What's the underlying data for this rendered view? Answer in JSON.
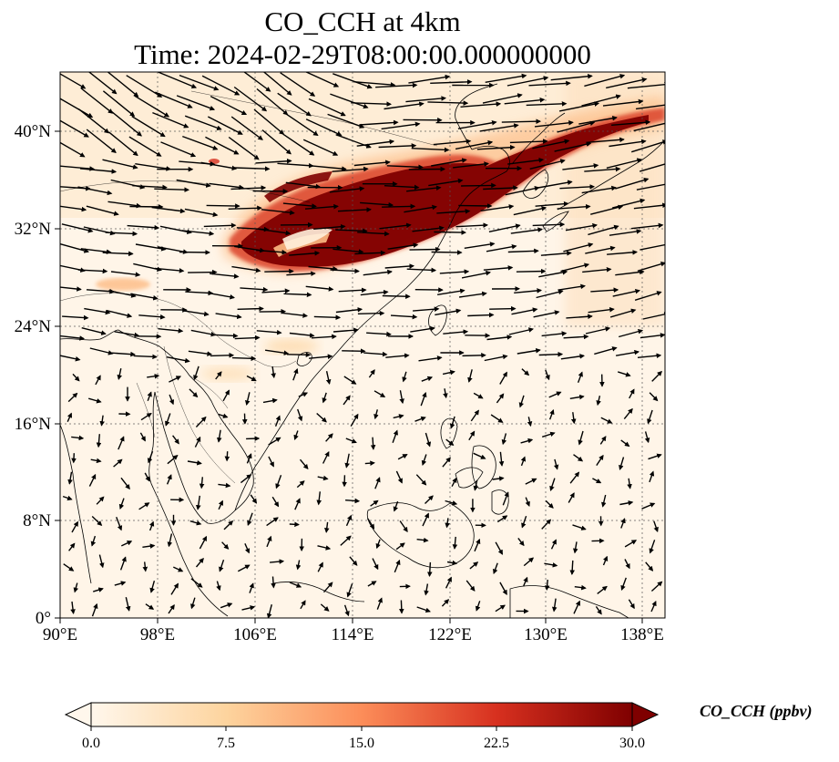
{
  "title": {
    "line1": "CO_CCH at 4km",
    "line2": "Time: 2024-02-29T08:00:00.000000000"
  },
  "map": {
    "lon_range": [
      90,
      139.5
    ],
    "lat_range": [
      0,
      44.8
    ],
    "x_ticks": [
      "90°E",
      "98°E",
      "106°E",
      "114°E",
      "122°E",
      "130°E",
      "138°E"
    ],
    "y_ticks": [
      "0°",
      "8°N",
      "16°N",
      "24°N",
      "32°N",
      "40°N"
    ],
    "grid": "dotted",
    "wind_vectors": "black arrows",
    "coastlines": "black"
  },
  "colorbar": {
    "label": "CO_CCH (ppbv)",
    "ticks": [
      "0.0",
      "7.5",
      "15.0",
      "22.5",
      "30.0"
    ],
    "range": [
      0,
      30
    ],
    "extend": "both",
    "colormap": "OrRd",
    "colors": [
      "#fff7ec",
      "#fdd49e",
      "#fc8d59",
      "#d7301f",
      "#7f0000"
    ]
  }
}
